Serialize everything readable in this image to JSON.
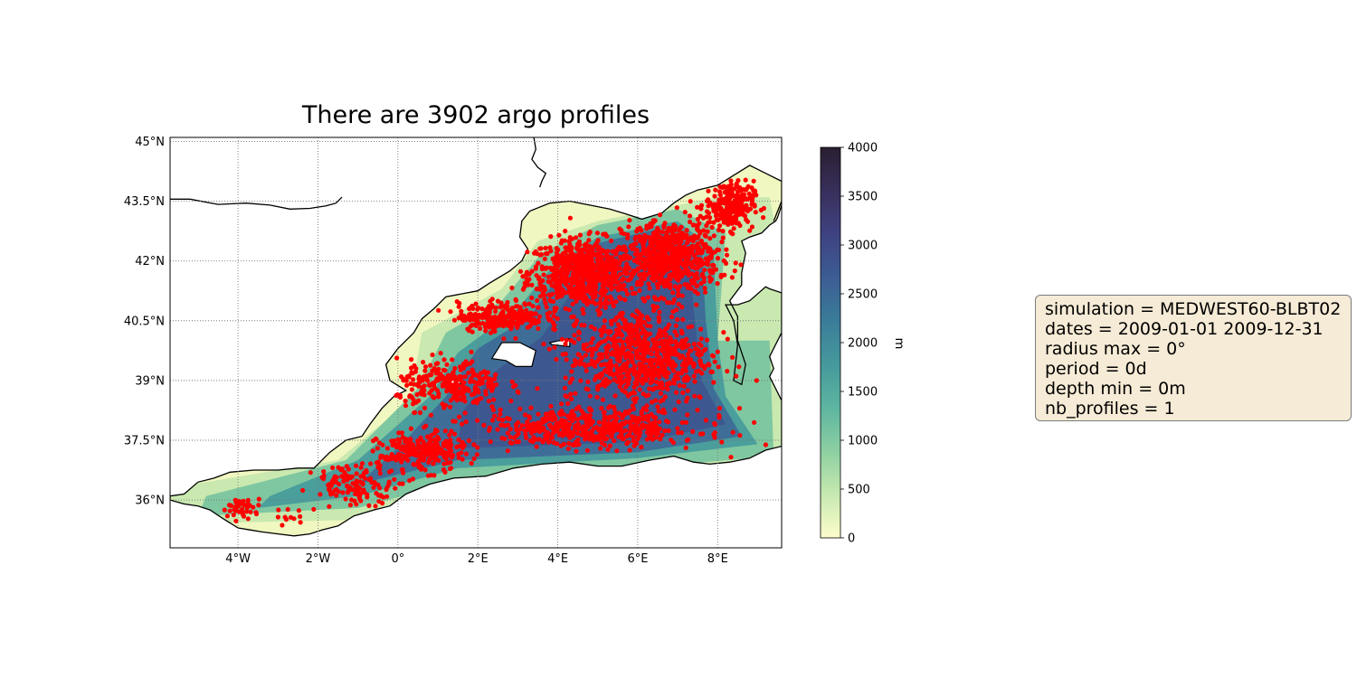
{
  "figure": {
    "title": "There are 3902 argo profiles"
  },
  "map": {
    "lon_range": [
      -5.7,
      9.6
    ],
    "lat_range": [
      34.8,
      45.1
    ],
    "lat_ticks": [
      "45°N",
      "43.5°N",
      "42°N",
      "40.5°N",
      "39°N",
      "37.5°N",
      "36°N"
    ],
    "lon_ticks": [
      "4°W",
      "2°W",
      "0°",
      "2°E",
      "4°E",
      "6°E",
      "8°E"
    ],
    "gridlines": true,
    "gridline_style": "dotted",
    "colors": {
      "profile_marker": "#ff0000",
      "coastline": "#000000",
      "land": "#ffffff"
    }
  },
  "colorbar": {
    "label": "m",
    "min": 0,
    "max": 4000,
    "ticks": [
      "0",
      "500",
      "1000",
      "1500",
      "2000",
      "2500",
      "3000",
      "3500",
      "4000"
    ],
    "colors": [
      "#fdfdcc",
      "#c7e9b0",
      "#8ed0a2",
      "#5fb6a0",
      "#469a9d",
      "#3a7b99",
      "#3c5c93",
      "#3f4281",
      "#382f5b",
      "#2a1e31"
    ]
  },
  "info": {
    "lines": [
      "simulation = MEDWEST60-BLBT02",
      "dates = 2009-01-01 2009-12-31",
      "radius max = 0°",
      "period = 0d",
      "depth min = 0m",
      "nb_profiles = 1"
    ]
  },
  "chart_data": {
    "type": "scatter",
    "title": "There are 3902 argo profiles",
    "xlabel": "",
    "ylabel": "",
    "xlim": [
      -5.7,
      9.6
    ],
    "ylim": [
      34.8,
      45.1
    ],
    "series": [
      {
        "marker_color": "#ff0000",
        "point_count": 3902,
        "clusters": [
          {
            "lon": 4.6,
            "lat": 41.7,
            "spread": [
              1.1,
              0.7
            ],
            "n": 700
          },
          {
            "lon": 6.8,
            "lat": 42.1,
            "spread": [
              1.0,
              0.8
            ],
            "n": 650
          },
          {
            "lon": 8.3,
            "lat": 43.4,
            "spread": [
              0.5,
              0.5
            ],
            "n": 250
          },
          {
            "lon": 6.0,
            "lat": 39.6,
            "spread": [
              1.5,
              1.0
            ],
            "n": 700
          },
          {
            "lon": 2.6,
            "lat": 40.6,
            "spread": [
              0.9,
              0.3
            ],
            "n": 260
          },
          {
            "lon": 1.3,
            "lat": 38.9,
            "spread": [
              1.1,
              0.5
            ],
            "n": 260
          },
          {
            "lon": 4.8,
            "lat": 37.8,
            "spread": [
              2.3,
              0.4
            ],
            "n": 500
          },
          {
            "lon": 0.6,
            "lat": 37.2,
            "spread": [
              0.9,
              0.4
            ],
            "n": 250
          },
          {
            "lon": -1.0,
            "lat": 36.4,
            "spread": [
              0.9,
              0.4
            ],
            "n": 130
          },
          {
            "lon": -3.9,
            "lat": 35.8,
            "spread": [
              0.4,
              0.2
            ],
            "n": 40
          },
          {
            "lon": -2.7,
            "lat": 35.6,
            "spread": [
              0.4,
              0.2
            ],
            "n": 12
          }
        ]
      }
    ],
    "colorbar": {
      "label": "m",
      "range": [
        0,
        4000
      ]
    }
  }
}
